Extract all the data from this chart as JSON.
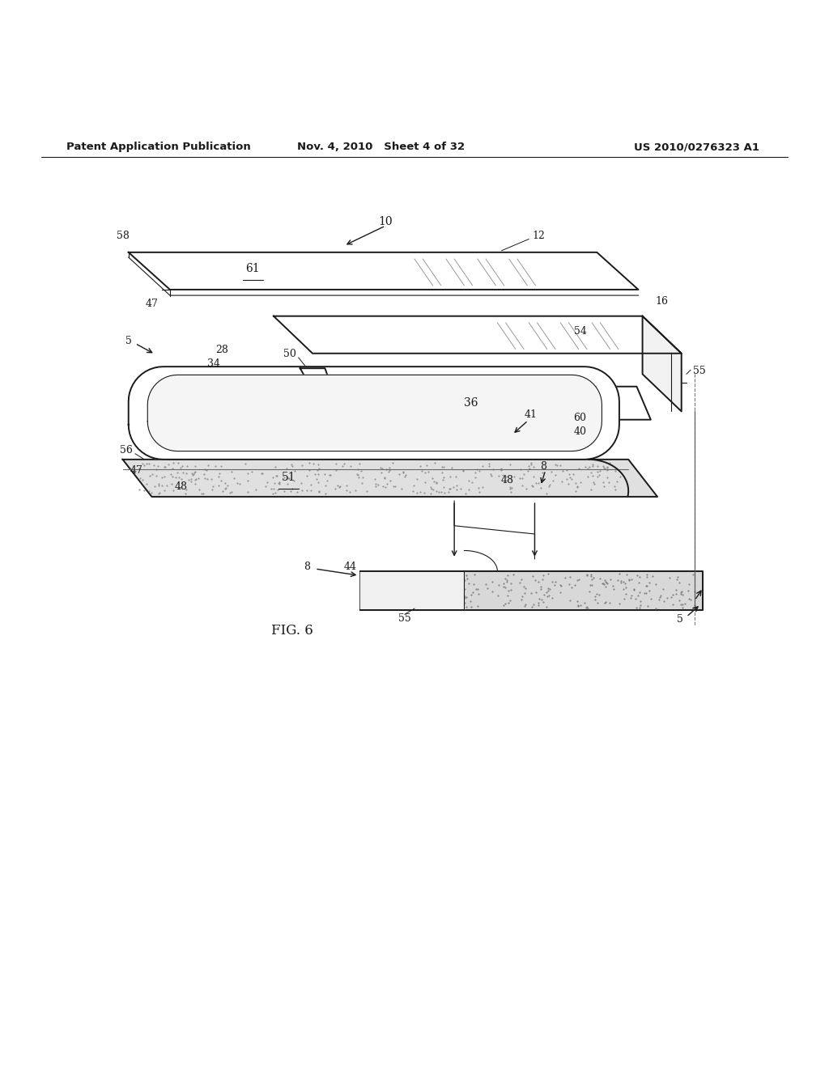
{
  "title_left": "Patent Application Publication",
  "title_mid": "Nov. 4, 2010   Sheet 4 of 32",
  "title_right": "US 2010/0276323 A1",
  "fig_label": "FIG. 6",
  "bg_color": "#ffffff",
  "line_color": "#1a1a1a"
}
